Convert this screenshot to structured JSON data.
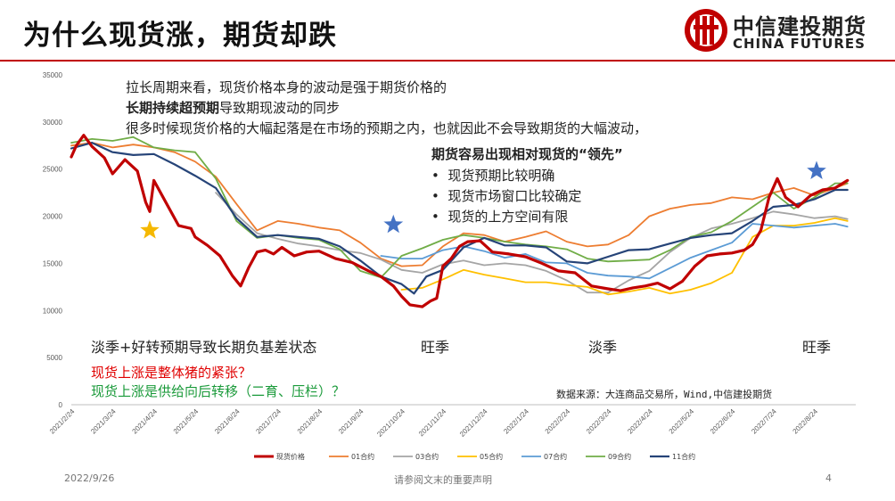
{
  "slide": {
    "title": "为什么现货涨，期货却跌",
    "logo_cn": "中信建投期货",
    "logo_en": "CHINA FUTURES",
    "date": "2022/9/26",
    "disclaimer": "请参阅文末的重要声明",
    "page": "4",
    "accent_color": "#c00000"
  },
  "notes": {
    "line1": "拉长周期来看，现货价格本身的波动是强于期货价格的",
    "line2_bold": "长期持续超预期",
    "line2_rest": "导致期现波动的同步",
    "line3": "很多时候现货价格的大幅起落是在市场的预期之内，也就因此不会导致期货的大幅波动，",
    "box_title": "期货容易出现相对现货的“领先”",
    "bullets": [
      "现货预期比较明确",
      "现货市场窗口比较确定",
      "现货的上方空间有限"
    ],
    "seasons": [
      "淡季+好转预期导致长期负基差状态",
      "旺季",
      "淡季",
      "旺季"
    ],
    "question1": "现货上涨是整体猪的紧张？",
    "question2": "现货上涨是供给向后转移（二育、压栏）？",
    "source": "数据来源：大连商品交易所，Wind,中信建投期货"
  },
  "chart_data": {
    "type": "line",
    "ylim": [
      0,
      35000
    ],
    "yticks": [
      "0",
      "5000",
      "10000",
      "15000",
      "20000",
      "25000",
      "30000",
      "35000"
    ],
    "ytick_values": [
      0,
      5000,
      10000,
      15000,
      20000,
      25000,
      30000,
      35000
    ],
    "xticks": [
      "2021/2/24",
      "2021/3/24",
      "2021/4/24",
      "2021/5/24",
      "2021/6/24",
      "2021/7/24",
      "2021/8/24",
      "2021/9/24",
      "2021/10/24",
      "2021/11/24",
      "2021/12/24",
      "2022/1/24",
      "2022/2/24",
      "2022/3/24",
      "2022/4/24",
      "2022/5/24",
      "2022/6/24",
      "2022/7/24",
      "2022/8/24"
    ],
    "x_index_range": [
      0,
      19
    ],
    "series": [
      {
        "name": "现货价格",
        "color": "#c00000",
        "width": 3.2,
        "x": [
          0,
          0.12,
          0.3,
          0.5,
          0.8,
          1.0,
          1.3,
          1.6,
          1.8,
          1.9,
          2.0,
          2.3,
          2.6,
          2.9,
          3.0,
          3.3,
          3.6,
          3.9,
          4.1,
          4.3,
          4.5,
          4.7,
          4.9,
          5.1,
          5.4,
          5.7,
          6.0,
          6.4,
          6.8,
          7.2,
          7.5,
          7.8,
          8.0,
          8.2,
          8.5,
          8.7,
          8.85,
          9.0,
          9.2,
          9.4,
          9.6,
          9.9,
          10.2,
          10.6,
          11.0,
          11.4,
          11.8,
          12.2,
          12.6,
          13.0,
          13.3,
          13.6,
          13.9,
          14.2,
          14.5,
          14.8,
          15.1,
          15.4,
          15.7,
          16.0,
          16.3,
          16.5,
          16.7,
          16.9,
          17.1,
          17.3,
          17.6,
          17.9,
          18.2,
          18.5,
          18.8
        ],
        "values": [
          26300,
          27500,
          28600,
          27400,
          26200,
          24500,
          26000,
          24800,
          21500,
          20500,
          23800,
          21400,
          19000,
          18700,
          17800,
          16900,
          15800,
          13700,
          12600,
          14600,
          16200,
          16400,
          16000,
          16700,
          15800,
          16200,
          16300,
          15500,
          15100,
          14200,
          13600,
          12600,
          11500,
          10600,
          10400,
          11000,
          11300,
          14700,
          15500,
          16800,
          17300,
          17400,
          16200,
          16000,
          15700,
          15000,
          14200,
          14000,
          12600,
          12300,
          12100,
          12400,
          12600,
          12900,
          12300,
          13100,
          14700,
          15800,
          16000,
          16100,
          16400,
          17000,
          18500,
          22000,
          24000,
          22000,
          21000,
          22200,
          22800,
          23000,
          23800
        ]
      },
      {
        "name": "01合约",
        "color": "#ed7d31",
        "width": 1.8,
        "x": [
          0,
          0.5,
          1.0,
          1.5,
          2.0,
          2.5,
          3.0,
          3.5,
          4.0,
          4.5,
          5.0,
          5.5,
          6.0,
          6.5,
          7.0,
          7.5,
          8.0,
          8.5,
          9.0,
          9.5,
          10.0,
          10.5,
          11.0,
          11.5,
          12.0,
          12.5,
          13.0,
          13.5,
          14.0,
          14.5,
          15.0,
          15.5,
          16.0,
          16.5,
          17.0,
          17.5,
          18.0,
          18.5,
          18.8
        ],
        "values": [
          27500,
          27800,
          27300,
          27600,
          27300,
          26800,
          25800,
          24200,
          21300,
          18500,
          19500,
          19200,
          18800,
          18500,
          17200,
          15500,
          14700,
          14800,
          16800,
          18200,
          18000,
          17300,
          17800,
          18400,
          17300,
          16800,
          17000,
          18000,
          20000,
          20800,
          21200,
          21400,
          22000,
          21800,
          22500,
          23000,
          22200,
          23000,
          23500
        ]
      },
      {
        "name": "03合约",
        "color": "#a5a5a5",
        "width": 1.8,
        "x": [
          3.5,
          4.0,
          4.5,
          5.0,
          5.5,
          6.0,
          6.5,
          7.0,
          7.5,
          8.0,
          8.5,
          9.0,
          9.5,
          10.0,
          10.5,
          11.0,
          11.5,
          12.0,
          12.5,
          13.0,
          13.5,
          14.0,
          14.5,
          15.0,
          15.5,
          16.0,
          16.5,
          17.0,
          17.5,
          18.0,
          18.5,
          18.8
        ],
        "values": [
          22500,
          20200,
          18200,
          17600,
          17100,
          16800,
          16400,
          16100,
          15400,
          14300,
          14000,
          14900,
          15300,
          14800,
          15000,
          14800,
          14200,
          13200,
          11900,
          11900,
          13200,
          14200,
          16200,
          17700,
          18700,
          19200,
          19800,
          20500,
          20200,
          19800,
          20000,
          19700
        ]
      },
      {
        "name": "05合约",
        "color": "#ffc000",
        "width": 1.8,
        "x": [
          8.0,
          8.5,
          9.0,
          9.5,
          10.0,
          10.5,
          11.0,
          11.5,
          12.0,
          12.5,
          13.0,
          13.5,
          14.0,
          14.5,
          15.0,
          15.5,
          16.0,
          16.5,
          17.0,
          17.5,
          18.0,
          18.5,
          18.8
        ],
        "values": [
          12200,
          12400,
          13300,
          14300,
          13800,
          13400,
          13000,
          13000,
          12700,
          12500,
          11700,
          12000,
          12400,
          11800,
          12200,
          12900,
          14000,
          17800,
          19000,
          19000,
          19300,
          19800,
          19500
        ]
      },
      {
        "name": "07合约",
        "color": "#5b9bd5",
        "width": 1.8,
        "x": [
          7.5,
          8.0,
          8.5,
          9.0,
          9.5,
          10.0,
          10.5,
          11.0,
          11.5,
          12.0,
          12.5,
          13.0,
          13.5,
          14.0,
          14.5,
          15.0,
          15.5,
          16.0,
          16.5,
          17.0,
          17.5,
          18.0,
          18.5,
          18.8
        ],
        "values": [
          15800,
          15500,
          15500,
          16400,
          16800,
          16300,
          15600,
          16000,
          15100,
          15000,
          14000,
          13700,
          13600,
          13400,
          14500,
          15600,
          16400,
          17200,
          19200,
          19000,
          18800,
          19000,
          19200,
          18900
        ]
      },
      {
        "name": "09合约",
        "color": "#70ad47",
        "width": 1.8,
        "x": [
          0,
          0.5,
          1.0,
          1.5,
          2.0,
          2.5,
          3.0,
          3.5,
          4.0,
          4.5,
          5.0,
          5.5,
          6.0,
          6.5,
          7.0,
          7.5,
          8.0,
          8.5,
          9.0,
          9.5,
          10.0,
          10.5,
          11.0,
          11.5,
          12.0,
          12.5,
          13.0,
          13.5,
          14.0,
          14.5,
          15.0,
          15.5,
          16.0,
          16.5,
          17.0,
          17.5,
          18.0,
          18.5,
          18.8
        ],
        "values": [
          27800,
          28200,
          28000,
          28400,
          27300,
          27000,
          26800,
          24000,
          19500,
          17700,
          18000,
          17700,
          17500,
          16500,
          14200,
          13500,
          15800,
          16600,
          17500,
          18000,
          17700,
          17300,
          17000,
          16800,
          16500,
          15500,
          15200,
          15300,
          15400,
          16400,
          17800,
          18300,
          19500,
          21000,
          22500,
          20800,
          22000,
          23500,
          23500
        ]
      },
      {
        "name": "11合约",
        "color": "#264478",
        "width": 2.2,
        "x": [
          0,
          0.5,
          1.0,
          1.5,
          2.0,
          2.5,
          3.0,
          3.5,
          4.0,
          4.5,
          5.0,
          5.5,
          6.0,
          6.5,
          7.0,
          7.5,
          8.0,
          8.3,
          8.6,
          9.0,
          9.5,
          10.0,
          10.5,
          11.0,
          11.5,
          12.0,
          12.5,
          13.0,
          13.5,
          14.0,
          14.5,
          15.0,
          15.5,
          16.0,
          16.5,
          17.0,
          17.5,
          18.0,
          18.5,
          18.8
        ],
        "values": [
          27200,
          27800,
          26800,
          26500,
          26600,
          25500,
          24300,
          23000,
          19800,
          17800,
          18000,
          17800,
          17600,
          16800,
          15300,
          13600,
          12800,
          11800,
          13600,
          14300,
          16700,
          17700,
          16900,
          16900,
          16700,
          15200,
          15000,
          15700,
          16400,
          16500,
          17100,
          17700,
          18000,
          18200,
          19500,
          21000,
          21200,
          21800,
          22800,
          22800
        ]
      }
    ],
    "annotations": [
      {
        "type": "star",
        "color": "#f5b800",
        "x": 1.9,
        "y": 18500
      },
      {
        "type": "star",
        "color": "#4472c4",
        "x": 7.8,
        "y": 19100
      },
      {
        "type": "star",
        "color": "#4472c4",
        "x": 18.05,
        "y": 24800
      }
    ]
  }
}
